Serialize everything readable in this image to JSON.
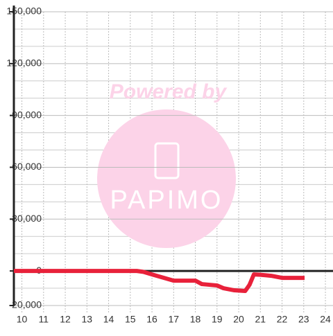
{
  "chart_data": {
    "type": "line",
    "watermark": [
      "Powered by",
      "PAPIMO"
    ],
    "xlim": [
      9.63,
      24.35
    ],
    "xticks": [
      10,
      11,
      12,
      13,
      14,
      15,
      16,
      17,
      18,
      19,
      20,
      21,
      22,
      23,
      24
    ],
    "ylim": [
      -20000,
      150000
    ],
    "yticks": [
      {
        "value": -20000,
        "label": "-20,000"
      },
      0,
      {
        "value": 30000,
        "label": "30,000"
      },
      {
        "value": 60000,
        "label": "60,000"
      },
      {
        "value": 90000,
        "label": "90,000"
      },
      {
        "value": 120000,
        "label": "120,000"
      },
      {
        "value": 150000,
        "label": "150,000"
      }
    ],
    "minor_yticks": [
      -10000,
      10000,
      20000,
      40000,
      50000,
      70000,
      80000,
      100000,
      110000,
      130000,
      140000
    ],
    "grid": true,
    "series": [
      {
        "color": "#e8213a",
        "x": [
          9.63,
          15.3,
          15.6,
          16,
          16.5,
          17,
          18,
          18.3,
          19,
          19.3,
          19.8,
          20.3,
          20.5,
          20.7,
          21,
          21.5,
          22,
          22.5,
          23.04
        ],
        "values": [
          0,
          0,
          -500,
          -2000,
          -3800,
          -5600,
          -5600,
          -7600,
          -8400,
          -10000,
          -11200,
          -11600,
          -8000,
          -2000,
          -2200,
          -2800,
          -4000,
          -4000,
          -4000
        ]
      }
    ]
  }
}
